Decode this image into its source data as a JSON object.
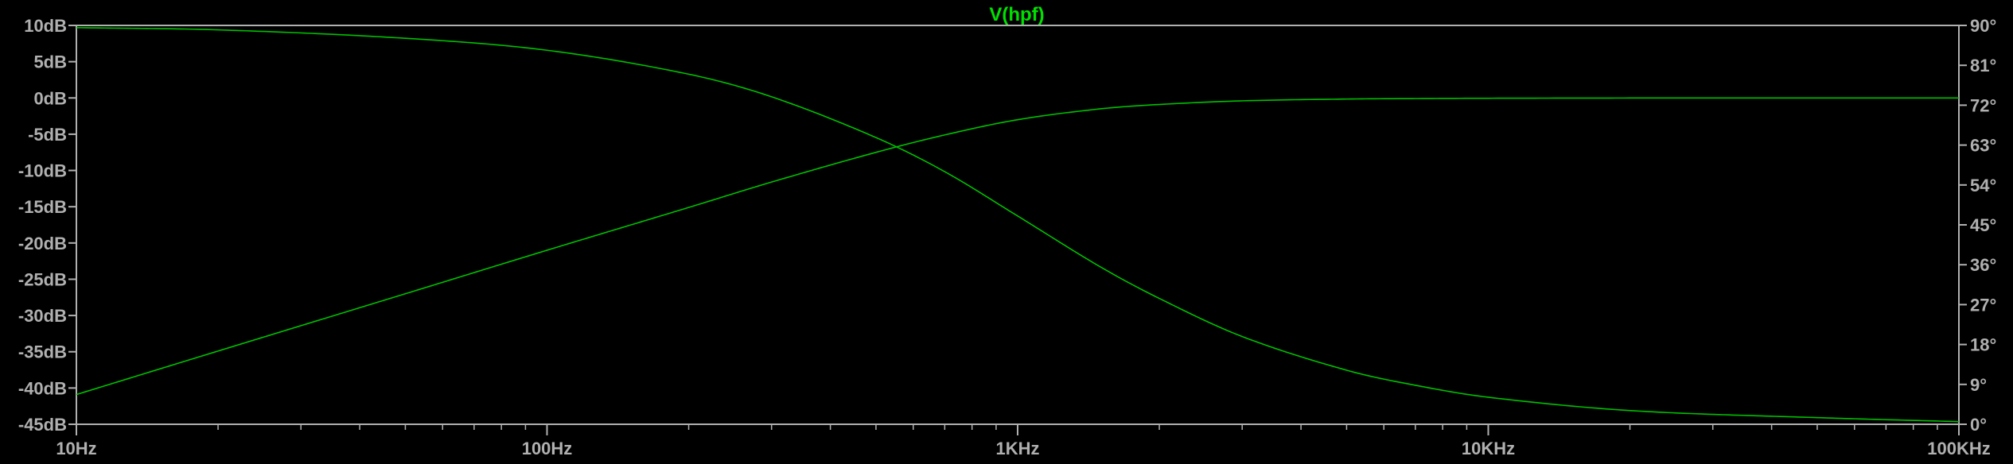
{
  "chart_data": {
    "type": "line",
    "title": "V(hpf)",
    "xlabel": "",
    "ylabel": "",
    "x_scale": "log",
    "xlim": [
      10,
      100000
    ],
    "ylim_left": [
      -45,
      10
    ],
    "ylim_right": [
      0,
      90
    ],
    "x_ticks": [
      "10Hz",
      "100Hz",
      "1KHz",
      "10KHz",
      "100KHz"
    ],
    "left_ticks": [
      "10dB",
      "5dB",
      "0dB",
      "-5dB",
      "-10dB",
      "-15dB",
      "-20dB",
      "-25dB",
      "-30dB",
      "-35dB",
      "-40dB",
      "-45dB"
    ],
    "right_ticks": [
      "90°",
      "81°",
      "72°",
      "63°",
      "54°",
      "45°",
      "36°",
      "27°",
      "18°",
      "9°",
      "0°"
    ],
    "grid": false,
    "colors": {
      "background": "#000000",
      "trace": "#00c000",
      "axis": "#b0b0b0",
      "title": "#00e000"
    },
    "series": [
      {
        "axis": "left",
        "x": [
          10,
          20,
          50,
          100,
          200,
          300,
          500,
          700,
          1000,
          1500,
          2000,
          3000,
          5000,
          7000,
          10000,
          20000,
          50000,
          100000
        ],
        "values": [
          -40.9,
          -34.9,
          -27.0,
          -21.0,
          -15.1,
          -11.6,
          -7.5,
          -5.1,
          -3.0,
          -1.5,
          -0.9,
          -0.4,
          -0.15,
          -0.08,
          -0.04,
          -0.01,
          0,
          0
        ]
      },
      {
        "axis": "right",
        "x": [
          10,
          20,
          50,
          100,
          200,
          300,
          500,
          700,
          1000,
          1500,
          2000,
          3000,
          5000,
          7000,
          10000,
          20000,
          50000,
          100000
        ],
        "values": [
          89.5,
          89.0,
          87.1,
          84.4,
          79.0,
          73.9,
          64.7,
          57.0,
          47.0,
          35.5,
          28.4,
          19.8,
          12.2,
          8.8,
          6.1,
          3.1,
          1.5,
          0.6
        ]
      }
    ]
  }
}
